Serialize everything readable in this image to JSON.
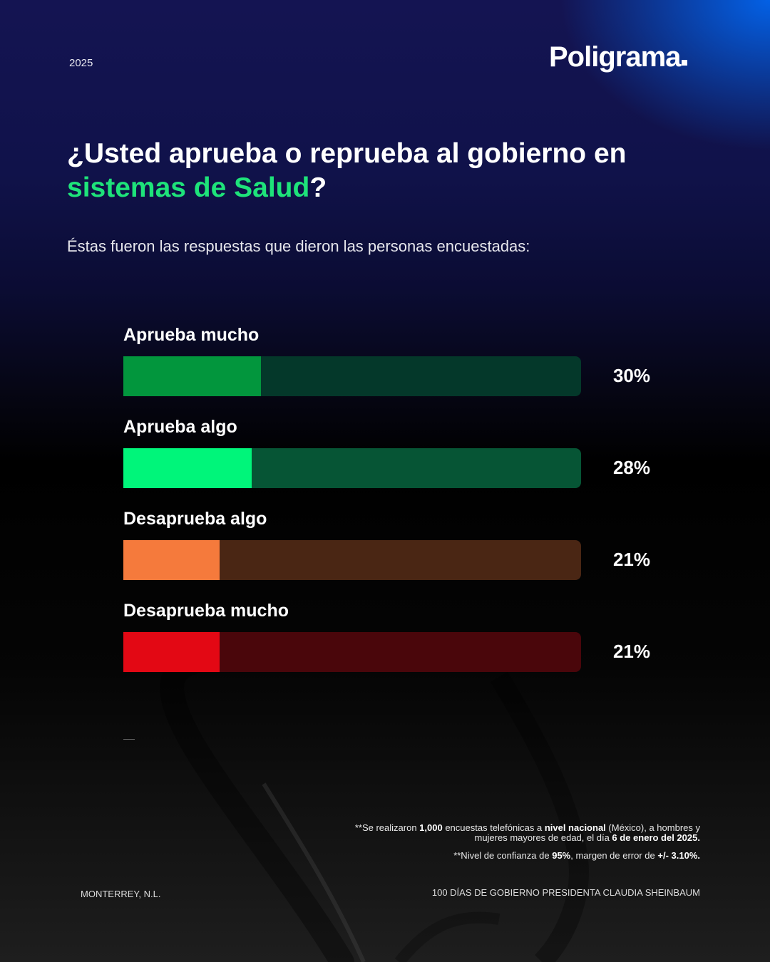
{
  "header": {
    "year": "2025",
    "brand": "Poligrama"
  },
  "question": {
    "part1": "¿Usted aprueba o reprueba al gobierno en",
    "highlight": "sistemas de Salud",
    "end": "?"
  },
  "subtitle": "Éstas fueron las respuestas que dieron las personas encuestadas:",
  "chart_data": {
    "type": "bar",
    "orientation": "horizontal",
    "categories": [
      "Aprueba mucho",
      "Aprueba algo",
      "Desaprueba algo",
      "Desaprueba mucho"
    ],
    "values": [
      30,
      28,
      21,
      21
    ],
    "labels": [
      "30%",
      "28%",
      "21%",
      "21%"
    ],
    "xlim": [
      0,
      100
    ],
    "colors": [
      "#02963d",
      "#00f57a",
      "#f57a3c",
      "#e30814"
    ],
    "track_colors": [
      "#04382a",
      "#065535",
      "#4a2614",
      "#4a060b"
    ]
  },
  "notes": {
    "line1_a": "**Se realizaron ",
    "line1_b": "1,000",
    "line1_c": " encuestas telefónicas a ",
    "line1_d": "nivel nacional",
    "line1_e": " (México), a hombres y",
    "line2_a": "mujeres mayores de edad, el día ",
    "line2_b": "6 de enero del 2025.",
    "line3_a": "**Nivel de confianza de ",
    "line3_b": "95%",
    "line3_c": ", margen de error de ",
    "line3_d": "+/- 3.10%."
  },
  "footer": {
    "location": "MONTERREY, N.L.",
    "campaign": "100 DÍAS DE GOBIERNO PRESIDENTA CLAUDIA SHEINBAUM"
  }
}
